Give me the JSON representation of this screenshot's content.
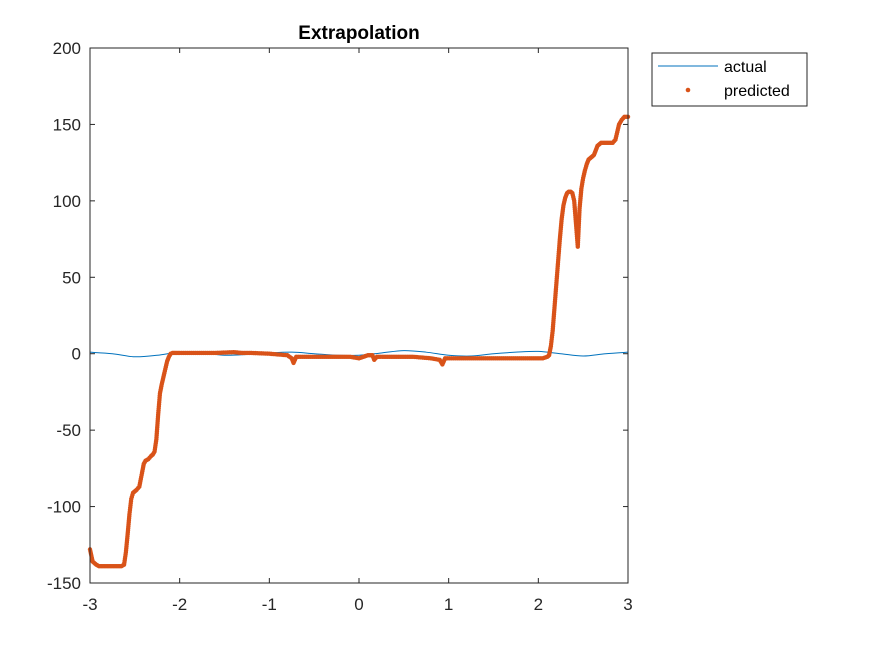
{
  "chart_data": {
    "type": "line",
    "title": "Extrapolation",
    "xlabel": "",
    "ylabel": "",
    "xlim": [
      -3,
      3
    ],
    "ylim": [
      -150,
      200
    ],
    "xticks": [
      -3,
      -2,
      -1,
      0,
      1,
      2,
      3
    ],
    "xtick_labels": [
      "-3",
      "-2",
      "-1",
      "0",
      "1",
      "2",
      "3"
    ],
    "yticks": [
      -150,
      -100,
      -50,
      0,
      50,
      100,
      150,
      200
    ],
    "ytick_labels": [
      "-150",
      "-100",
      "-50",
      "0",
      "50",
      "100",
      "150",
      "200"
    ],
    "grid": false,
    "legend_position": "outside-top-right",
    "series": [
      {
        "name": "actual",
        "style": "line",
        "color": "#0072BD",
        "x": [
          -3.0,
          -2.75,
          -2.5,
          -2.25,
          -2.0,
          -1.75,
          -1.5,
          -1.25,
          -1.0,
          -0.75,
          -0.5,
          -0.25,
          0.0,
          0.25,
          0.5,
          0.75,
          1.0,
          1.25,
          1.5,
          1.75,
          2.0,
          2.25,
          2.5,
          2.75,
          3.0
        ],
        "y": [
          1.0,
          0.0,
          -2.0,
          -1.0,
          1.0,
          0.5,
          -1.0,
          -0.5,
          0.5,
          1.0,
          0.0,
          -1.0,
          -1.0,
          0.5,
          2.0,
          1.0,
          -1.0,
          -1.5,
          0.0,
          1.0,
          1.5,
          0.0,
          -1.5,
          0.0,
          1.0
        ]
      },
      {
        "name": "predicted",
        "style": "dots",
        "color": "#D95319",
        "x": [
          -3.0,
          -2.97,
          -2.93,
          -2.9,
          -2.85,
          -2.8,
          -2.75,
          -2.7,
          -2.65,
          -2.62,
          -2.6,
          -2.58,
          -2.56,
          -2.54,
          -2.52,
          -2.5,
          -2.48,
          -2.45,
          -2.42,
          -2.4,
          -2.38,
          -2.35,
          -2.32,
          -2.3,
          -2.28,
          -2.26,
          -2.24,
          -2.22,
          -2.2,
          -2.18,
          -2.16,
          -2.14,
          -2.12,
          -2.1,
          -2.08,
          -2.05,
          -2.0,
          -1.8,
          -1.6,
          -1.4,
          -1.3,
          -1.2,
          -1.0,
          -0.8,
          -0.75,
          -0.73,
          -0.7,
          -0.5,
          -0.3,
          -0.1,
          0.0,
          0.05,
          0.1,
          0.15,
          0.17,
          0.2,
          0.3,
          0.4,
          0.5,
          0.6,
          0.8,
          0.9,
          0.93,
          0.96,
          1.1,
          1.3,
          1.5,
          1.7,
          1.9,
          2.05,
          2.1,
          2.12,
          2.14,
          2.16,
          2.18,
          2.2,
          2.22,
          2.24,
          2.26,
          2.28,
          2.3,
          2.32,
          2.34,
          2.36,
          2.38,
          2.4,
          2.42,
          2.44,
          2.46,
          2.48,
          2.5,
          2.52,
          2.54,
          2.56,
          2.58,
          2.6,
          2.62,
          2.64,
          2.66,
          2.7,
          2.75,
          2.8,
          2.83,
          2.86,
          2.88,
          2.9,
          2.93,
          2.96,
          3.0
        ],
        "y": [
          -128,
          -136,
          -138,
          -139,
          -139,
          -139,
          -139,
          -139,
          -139,
          -138,
          -130,
          -118,
          -105,
          -95,
          -91,
          -90,
          -89,
          -87,
          -78,
          -72,
          -70,
          -69,
          -67,
          -66,
          -64,
          -56,
          -40,
          -26,
          -20,
          -15,
          -10,
          -5,
          -2,
          0,
          0.5,
          0.5,
          0.5,
          0.5,
          0.5,
          1,
          0.5,
          0.5,
          0,
          -1,
          -3,
          -6,
          -2,
          -2,
          -2,
          -2,
          -3,
          -2,
          -1,
          -1,
          -4,
          -2,
          -2,
          -2,
          -2,
          -2,
          -3,
          -4,
          -7,
          -3,
          -3,
          -3,
          -3,
          -3,
          -3,
          -3,
          -2,
          -1,
          5,
          15,
          30,
          45,
          60,
          75,
          88,
          97,
          102,
          105,
          106,
          106,
          105,
          100,
          85,
          70,
          95,
          108,
          115,
          120,
          124,
          127,
          128,
          129,
          130,
          133,
          136,
          138,
          138,
          138,
          138,
          140,
          145,
          150,
          153,
          155,
          155
        ]
      }
    ]
  }
}
